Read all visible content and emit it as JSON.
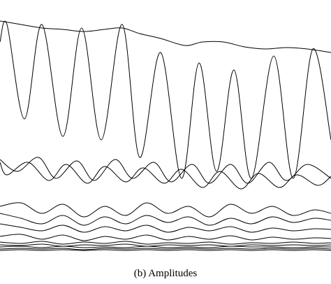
{
  "chart_data": {
    "type": "line",
    "caption": "(b) Amplitudes",
    "xlim": [
      0,
      474
    ],
    "ylim": [
      0,
      340
    ],
    "grid": false,
    "smooth": true,
    "series": [
      {
        "color": "#000000",
        "x": [
          0,
          30,
          60,
          90,
          120,
          150,
          175,
          200,
          230,
          265,
          290,
          320,
          350,
          380,
          410,
          440,
          474
        ],
        "values": [
          330,
          325,
          320,
          318,
          315,
          318,
          320,
          312,
          305,
          295,
          300,
          300,
          293,
          290,
          292,
          290,
          285
        ]
      },
      {
        "color": "#000000",
        "x": [
          0,
          10,
          35,
          60,
          90,
          117,
          145,
          175,
          200,
          230,
          260,
          285,
          310,
          335,
          360,
          392,
          420,
          448,
          474
        ],
        "values": [
          300,
          325,
          190,
          325,
          165,
          320,
          160,
          325,
          135,
          285,
          105,
          270,
          115,
          260,
          105,
          280,
          105,
          290,
          160
        ]
      },
      {
        "color": "#000000",
        "x": [
          0,
          25,
          55,
          80,
          110,
          135,
          165,
          190,
          220,
          245,
          275,
          300,
          330,
          355,
          385,
          410,
          440,
          474
        ],
        "values": [
          132,
          115,
          135,
          105,
          130,
          102,
          132,
          105,
          128,
          100,
          125,
          98,
          125,
          98,
          128,
          102,
          125,
          105
        ]
      },
      {
        "color": "#000000",
        "x": [
          0,
          10,
          40,
          70,
          95,
          125,
          150,
          180,
          205,
          235,
          260,
          290,
          315,
          345,
          370,
          400,
          425,
          455,
          474
        ],
        "values": [
          128,
          110,
          128,
          102,
          125,
          98,
          122,
          100,
          120,
          98,
          118,
          92,
          115,
          90,
          112,
          92,
          110,
          95,
          108
        ]
      },
      {
        "color": "#000000",
        "x": [
          0,
          30,
          60,
          90,
          120,
          150,
          180,
          210,
          240,
          270,
          300,
          330,
          360,
          390,
          420,
          450,
          474
        ],
        "values": [
          65,
          70,
          55,
          68,
          50,
          65,
          52,
          70,
          55,
          65,
          50,
          68,
          55,
          65,
          52,
          60,
          55
        ]
      },
      {
        "color": "#000000",
        "x": [
          0,
          30,
          60,
          90,
          120,
          150,
          180,
          210,
          240,
          270,
          300,
          330,
          360,
          390,
          420,
          450,
          474
        ],
        "values": [
          55,
          48,
          40,
          52,
          38,
          50,
          40,
          52,
          42,
          50,
          38,
          48,
          40,
          50,
          42,
          48,
          45
        ]
      },
      {
        "color": "#000000",
        "x": [
          0,
          30,
          60,
          90,
          120,
          150,
          180,
          210,
          240,
          270,
          300,
          330,
          360,
          390,
          420,
          450,
          474
        ],
        "values": [
          40,
          35,
          30,
          38,
          28,
          36,
          30,
          38,
          28,
          35,
          30,
          36,
          28,
          34,
          30,
          33,
          32
        ]
      },
      {
        "color": "#000000",
        "x": [
          0,
          30,
          60,
          90,
          120,
          150,
          180,
          210,
          240,
          270,
          300,
          330,
          360,
          390,
          420,
          450,
          474
        ],
        "values": [
          22,
          25,
          18,
          24,
          16,
          22,
          18,
          24,
          17,
          22,
          18,
          23,
          17,
          21,
          18,
          20,
          19
        ]
      },
      {
        "color": "#000000",
        "x": [
          0,
          30,
          60,
          90,
          120,
          150,
          180,
          210,
          240,
          270,
          300,
          330,
          360,
          390,
          420,
          450,
          474
        ],
        "values": [
          14,
          12,
          15,
          11,
          14,
          12,
          15,
          11,
          13,
          12,
          14,
          11,
          13,
          12,
          14,
          12,
          13
        ]
      },
      {
        "color": "#000000",
        "x": [
          0,
          30,
          60,
          90,
          120,
          150,
          180,
          210,
          240,
          270,
          300,
          330,
          360,
          390,
          420,
          450,
          474
        ],
        "values": [
          10,
          9,
          11,
          8,
          10,
          9,
          11,
          8,
          10,
          9,
          10,
          8,
          10,
          9,
          10,
          9,
          10
        ]
      },
      {
        "color": "#000000",
        "x": [
          0,
          30,
          60,
          90,
          120,
          150,
          180,
          210,
          240,
          270,
          300,
          330,
          360,
          390,
          420,
          450,
          474
        ],
        "values": [
          7,
          8,
          6,
          8,
          6,
          7,
          6,
          8,
          6,
          7,
          6,
          8,
          7,
          7,
          6,
          7,
          7
        ]
      },
      {
        "color": "#000000",
        "x": [
          0,
          30,
          60,
          90,
          120,
          150,
          180,
          210,
          240,
          270,
          300,
          330,
          360,
          390,
          420,
          450,
          474
        ],
        "values": [
          4,
          5,
          4,
          5,
          3,
          5,
          4,
          5,
          4,
          5,
          4,
          5,
          4,
          5,
          4,
          5,
          4
        ]
      },
      {
        "color": "#000000",
        "x": [
          0,
          30,
          60,
          90,
          120,
          150,
          180,
          210,
          240,
          270,
          300,
          330,
          360,
          390,
          420,
          450,
          474
        ],
        "values": [
          2,
          3,
          2,
          3,
          2,
          3,
          2,
          3,
          2,
          3,
          2,
          3,
          2,
          3,
          2,
          3,
          2
        ]
      }
    ]
  }
}
